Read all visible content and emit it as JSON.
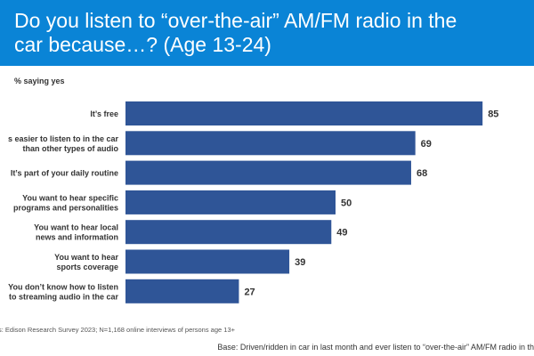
{
  "header": {
    "title_line1": "Do you listen to “over-the-air” AM/FM radio in the",
    "title_line2": "car because…? (Age 13-24)"
  },
  "subtitle": "% saying yes",
  "footnote": "s: Edison Research Survey 2023; N=1,168 online interviews of persons age 13+",
  "base_note": "Base: Driven/ridden in car in last month and ever listen to “over-the-air” AM/FM radio in th",
  "colors": {
    "banner": "#0a84d6",
    "bar": "#2f5597"
  },
  "chart_data": {
    "type": "bar",
    "orientation": "horizontal",
    "title": "Do you listen to “over-the-air” AM/FM radio in the car because…? (Age 13-24)",
    "ylabel": "% saying yes",
    "categories": [
      [
        "It’s free"
      ],
      [
        "s easier to listen to in the car",
        "than other types of audio"
      ],
      [
        "It’s part of your daily routine"
      ],
      [
        "You want to hear specific",
        "programs and personalities"
      ],
      [
        "You want to hear local",
        "news and information"
      ],
      [
        "You want to hear",
        "sports coverage"
      ],
      [
        "You don’t know how to listen",
        "to streaming audio in the car"
      ]
    ],
    "values": [
      85,
      69,
      68,
      50,
      49,
      39,
      27
    ],
    "xlim": [
      0,
      100
    ],
    "grid": false,
    "legend": "none"
  }
}
